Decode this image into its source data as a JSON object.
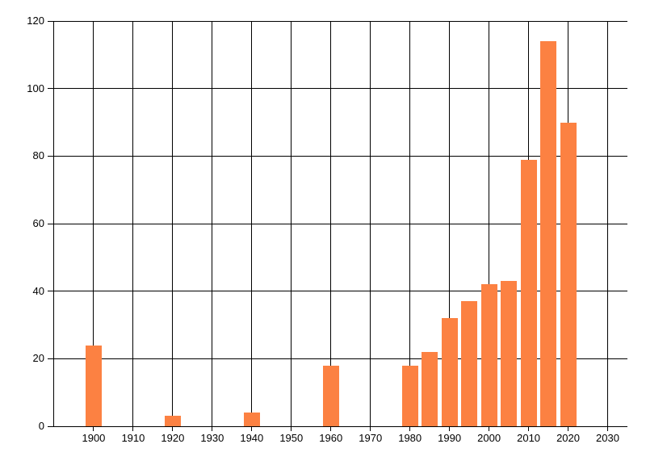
{
  "chart_data": {
    "type": "bar",
    "title": "",
    "xlabel": "",
    "ylabel": "",
    "x": [
      1900,
      1920,
      1940,
      1960,
      1980,
      1985,
      1990,
      1995,
      2000,
      2005,
      2010,
      2015,
      2020
    ],
    "values": [
      24,
      3,
      4,
      18,
      18,
      22,
      32,
      37,
      42,
      43,
      79,
      114,
      90
    ],
    "xlim": [
      1890,
      2035
    ],
    "ylim": [
      0,
      120
    ],
    "x_ticks": [
      1900,
      1910,
      1920,
      1930,
      1940,
      1950,
      1960,
      1970,
      1980,
      1990,
      2000,
      2010,
      2020,
      2030
    ],
    "y_ticks": [
      0,
      20,
      40,
      60,
      80,
      100,
      120
    ],
    "grid": true,
    "legend": false,
    "bar_color": "#FC8142",
    "grid_color": "#000000",
    "axis_color": "#000000",
    "text_color": "#000000",
    "background_color": "#ffffff"
  }
}
